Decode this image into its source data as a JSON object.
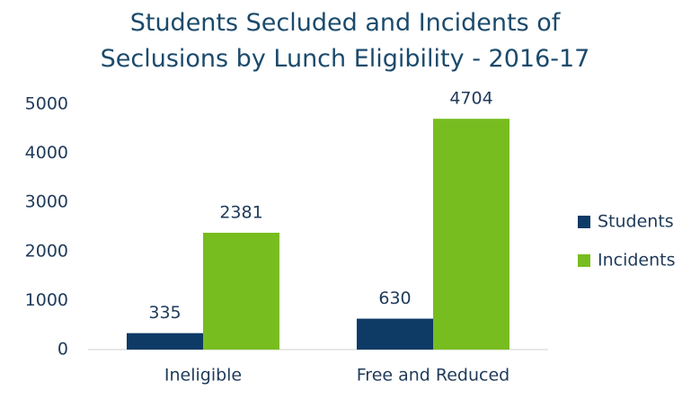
{
  "chart_data": {
    "type": "bar",
    "title": "Students Secluded and Incidents of Seclusions by Lunch Eligibility - 2016-17",
    "categories": [
      "Ineligible",
      "Free and Reduced"
    ],
    "series": [
      {
        "name": "Students",
        "color": "#0e3a66",
        "values": [
          335,
          630
        ]
      },
      {
        "name": "Incidents",
        "color": "#78bd20",
        "values": [
          2381,
          4704
        ]
      }
    ],
    "ylim": [
      0,
      5000
    ],
    "yticks": [
      0,
      1000,
      2000,
      3000,
      4000,
      5000
    ],
    "grid": false,
    "legend": "right"
  }
}
